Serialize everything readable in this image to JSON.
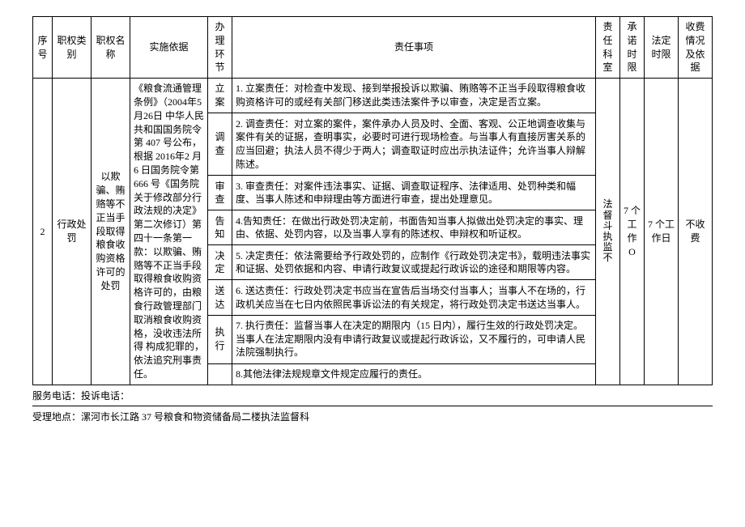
{
  "header": {
    "seq": "序号",
    "category": "职权类别",
    "name": "职权名称",
    "basis": "实施依据",
    "link": "办理环节",
    "responsibility": "责任事项",
    "dept": "责任科室",
    "promise_time": "承诺时限",
    "legal_time": "法定时限",
    "fee": "收费情况及依据"
  },
  "row": {
    "seq": "2",
    "category": "行政处罚",
    "name": "以欺骗、贿赂等不正当手段取得粮食收购资格许可的处罚",
    "basis": "《粮食流通管理条例》（2004年5月26日 中华人民共和国国务院令 第 407 号公布，根据 2016年2 月 6 日国务院令第666 号《国务院关于修改部分行政法规的决定》第二次修订）第四十一条第一款：以欺骗、贿赂等不正当手段取得粮食收购资格许可的，由粮食行政管理部门取消粮食收购资格，没收违法所得 构成犯罪的，依法追究刑事责任。",
    "dept": "法督斗执监不",
    "promise_time": "7 个工作 O",
    "legal_time": "7 个工作日",
    "fee": "不收费"
  },
  "steps": [
    {
      "link": "立案",
      "text": "1. 立案责任：对检查中发现、接到举报投诉以欺骗、贿赂等不正当手段取得粮食收购资格许可的或经有关部门移送此类违法案件予以审查，决定是否立案。"
    },
    {
      "link": "调查",
      "text": "2. 调查责任：对立案的案件，案件承办人员及时、全面、客观、公正地调查收集与案件有关的证据，查明事实，必要时可进行现场检查。与当事人有直接厉害关系的应当回避；执法人员不得少于两人；调查取证时应出示执法证件；允许当事人辩解陈述。"
    },
    {
      "link": "审查",
      "text": "3. 审查责任：对案件违法事实、证据、调查取证程序、法律适用、处罚种类和幅度、当事人陈述和申辩理由等方面进行审查，提出处理意见。"
    },
    {
      "link": "告知",
      "text": "4.告知责任：在做出行政处罚决定前，书面告知当事人拟做出处罚决定的事实、理由、依据、处罚内容，以及当事人享有的陈述权、申辩权和听证权。"
    },
    {
      "link": "决定",
      "text": "5. 决定责任：依法需要给予行政处罚的，应制作《行政处罚决定书》，载明违法事实和证据、处罚依据和内容、申请行政复议或提起行政诉讼的途径和期限等内容。"
    },
    {
      "link": "送达",
      "text": "6. 送达责任：行政处罚决定书应当在宣告后当场交付当事人；当事人不在场的，行政机关应当在七日内依照民事诉讼法的有关规定，将行政处罚决定书送达当事人。"
    },
    {
      "link": "执行",
      "text": "7. 执行责任：监督当事人在决定的期限内（15 日内），履行生效的行政处罚决定。当事人在法定期限内没有申请行政复议或提起行政诉讼，又不履行的，可申请人民法院强制执行。"
    },
    {
      "link": "",
      "text": "8.其他法律法规规章文件规定应履行的责任。"
    }
  ],
  "footer": {
    "phone": "服务电话：投诉电话：",
    "address": "受理地点：漯河市长江路 37 号粮食和物资储备局二楼执法监督科"
  },
  "styles": {
    "font_family": "SimSun",
    "base_fontsize_pt": 9,
    "border_color": "#000000",
    "bg_color": "#ffffff",
    "text_color": "#000000"
  }
}
